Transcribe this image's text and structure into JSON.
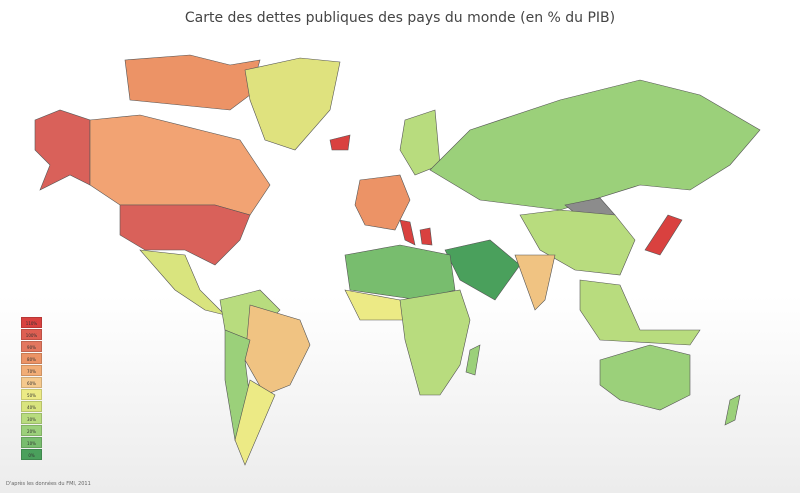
{
  "title": "Carte des dettes publiques des pays du monde (en % du PIB)",
  "legend": [
    {
      "label": "110%",
      "color": "#d9413f"
    },
    {
      "label": "100%",
      "color": "#de5f52"
    },
    {
      "label": "90%",
      "color": "#e3775f"
    },
    {
      "label": "80%",
      "color": "#ec9366"
    },
    {
      "label": "70%",
      "color": "#f2ad76"
    },
    {
      "label": "60%",
      "color": "#f5c98d"
    },
    {
      "label": "50%",
      "color": "#ecea85"
    },
    {
      "label": "40%",
      "color": "#d9e47e"
    },
    {
      "label": "30%",
      "color": "#b8dc7e"
    },
    {
      "label": "20%",
      "color": "#9bd07a"
    },
    {
      "label": "10%",
      "color": "#78bd6e"
    },
    {
      "label": "0%",
      "color": "#4aa05c"
    }
  ],
  "no_data_color": "#8c8c8c",
  "footer": "D'après les données du FMI, 2011"
}
